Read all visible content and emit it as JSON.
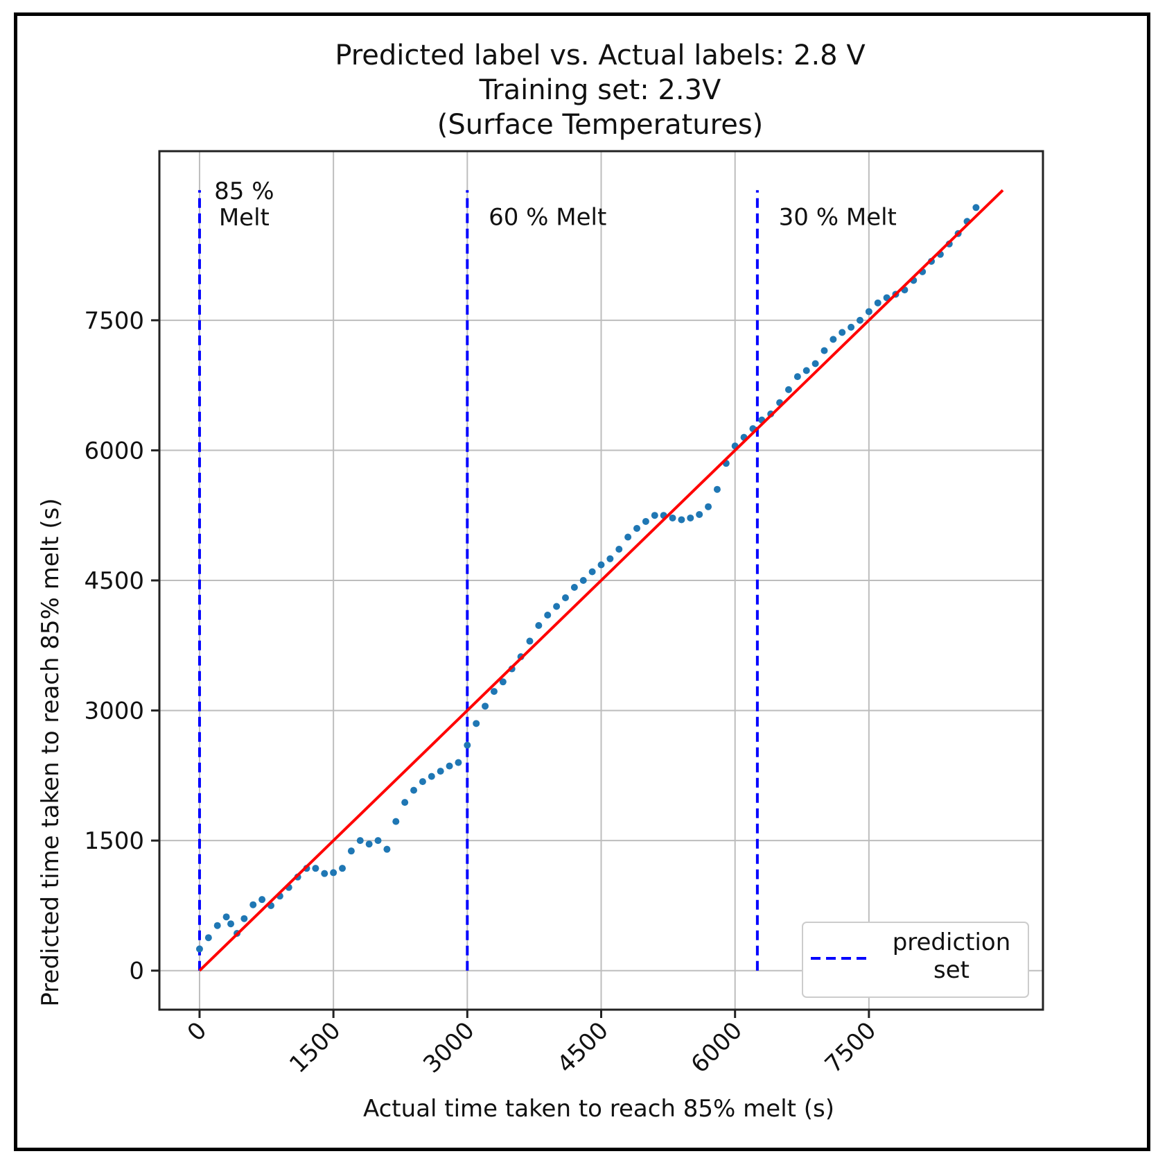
{
  "chart_data": {
    "type": "scatter",
    "title": [
      "Predicted label vs. Actual labels: 2.8 V",
      "Training set: 2.3V",
      "(Surface Temperatures)"
    ],
    "xlabel": "Actual time taken to reach 85% melt (s)",
    "ylabel": "Predicted time taken to reach 85% melt (s)",
    "xlim": [
      -450,
      9450
    ],
    "ylim": [
      -450,
      9450
    ],
    "xticks": [
      0,
      1500,
      3000,
      4500,
      6000,
      7500
    ],
    "yticks": [
      0,
      1500,
      3000,
      4500,
      6000,
      7500
    ],
    "grid": true,
    "scatter_color": "#1f77b4",
    "series": [
      {
        "name": "predictions",
        "kind": "scatter",
        "points": [
          [
            0,
            250
          ],
          [
            100,
            380
          ],
          [
            200,
            520
          ],
          [
            300,
            620
          ],
          [
            350,
            540
          ],
          [
            420,
            430
          ],
          [
            500,
            600
          ],
          [
            600,
            760
          ],
          [
            700,
            820
          ],
          [
            800,
            750
          ],
          [
            900,
            860
          ],
          [
            1000,
            960
          ],
          [
            1100,
            1080
          ],
          [
            1200,
            1180
          ],
          [
            1300,
            1180
          ],
          [
            1400,
            1120
          ],
          [
            1500,
            1130
          ],
          [
            1600,
            1180
          ],
          [
            1700,
            1380
          ],
          [
            1800,
            1500
          ],
          [
            1900,
            1460
          ],
          [
            2000,
            1500
          ],
          [
            2100,
            1400
          ],
          [
            2200,
            1720
          ],
          [
            2300,
            1940
          ],
          [
            2400,
            2080
          ],
          [
            2500,
            2180
          ],
          [
            2600,
            2240
          ],
          [
            2700,
            2300
          ],
          [
            2800,
            2360
          ],
          [
            2900,
            2400
          ],
          [
            3000,
            2600
          ],
          [
            3100,
            2850
          ],
          [
            3200,
            3050
          ],
          [
            3300,
            3220
          ],
          [
            3400,
            3330
          ],
          [
            3500,
            3480
          ],
          [
            3600,
            3620
          ],
          [
            3700,
            3800
          ],
          [
            3800,
            3980
          ],
          [
            3900,
            4100
          ],
          [
            4000,
            4200
          ],
          [
            4100,
            4300
          ],
          [
            4200,
            4420
          ],
          [
            4300,
            4500
          ],
          [
            4400,
            4600
          ],
          [
            4500,
            4680
          ],
          [
            4600,
            4750
          ],
          [
            4700,
            4860
          ],
          [
            4800,
            5000
          ],
          [
            4900,
            5100
          ],
          [
            5000,
            5180
          ],
          [
            5100,
            5250
          ],
          [
            5200,
            5250
          ],
          [
            5300,
            5220
          ],
          [
            5400,
            5200
          ],
          [
            5500,
            5220
          ],
          [
            5600,
            5260
          ],
          [
            5700,
            5350
          ],
          [
            5800,
            5550
          ],
          [
            5900,
            5850
          ],
          [
            6000,
            6050
          ],
          [
            6100,
            6150
          ],
          [
            6200,
            6250
          ],
          [
            6300,
            6350
          ],
          [
            6400,
            6420
          ],
          [
            6500,
            6550
          ],
          [
            6600,
            6700
          ],
          [
            6700,
            6850
          ],
          [
            6800,
            6920
          ],
          [
            6900,
            7000
          ],
          [
            7000,
            7150
          ],
          [
            7100,
            7280
          ],
          [
            7200,
            7360
          ],
          [
            7300,
            7420
          ],
          [
            7400,
            7500
          ],
          [
            7500,
            7600
          ],
          [
            7600,
            7700
          ],
          [
            7700,
            7760
          ],
          [
            7800,
            7800
          ],
          [
            7900,
            7850
          ],
          [
            8000,
            7960
          ],
          [
            8100,
            8060
          ],
          [
            8200,
            8180
          ],
          [
            8300,
            8260
          ],
          [
            8400,
            8380
          ],
          [
            8500,
            8500
          ],
          [
            8600,
            8640
          ],
          [
            8700,
            8800
          ]
        ]
      },
      {
        "name": "ideal",
        "kind": "line",
        "color": "#ff0000",
        "x": [
          0,
          9000
        ],
        "y": [
          0,
          9000
        ]
      },
      {
        "name": "prediction set",
        "kind": "vline",
        "color": "#0000ff",
        "style": "dashed",
        "x": [
          0,
          3000,
          6250
        ],
        "y_range": [
          0,
          9000
        ]
      }
    ],
    "annotations": [
      {
        "lines": [
          "85 %",
          "Melt"
        ],
        "x": 500,
        "y": 8900
      },
      {
        "lines": [
          "60 % Melt"
        ],
        "x": 3900,
        "y": 8600
      },
      {
        "lines": [
          "30 % Melt"
        ],
        "x": 7150,
        "y": 8600
      }
    ],
    "legend": {
      "position": "bottom-right",
      "entries": [
        {
          "label": [
            "prediction",
            "set"
          ],
          "style": "dashed",
          "color": "#0000ff"
        }
      ]
    }
  }
}
